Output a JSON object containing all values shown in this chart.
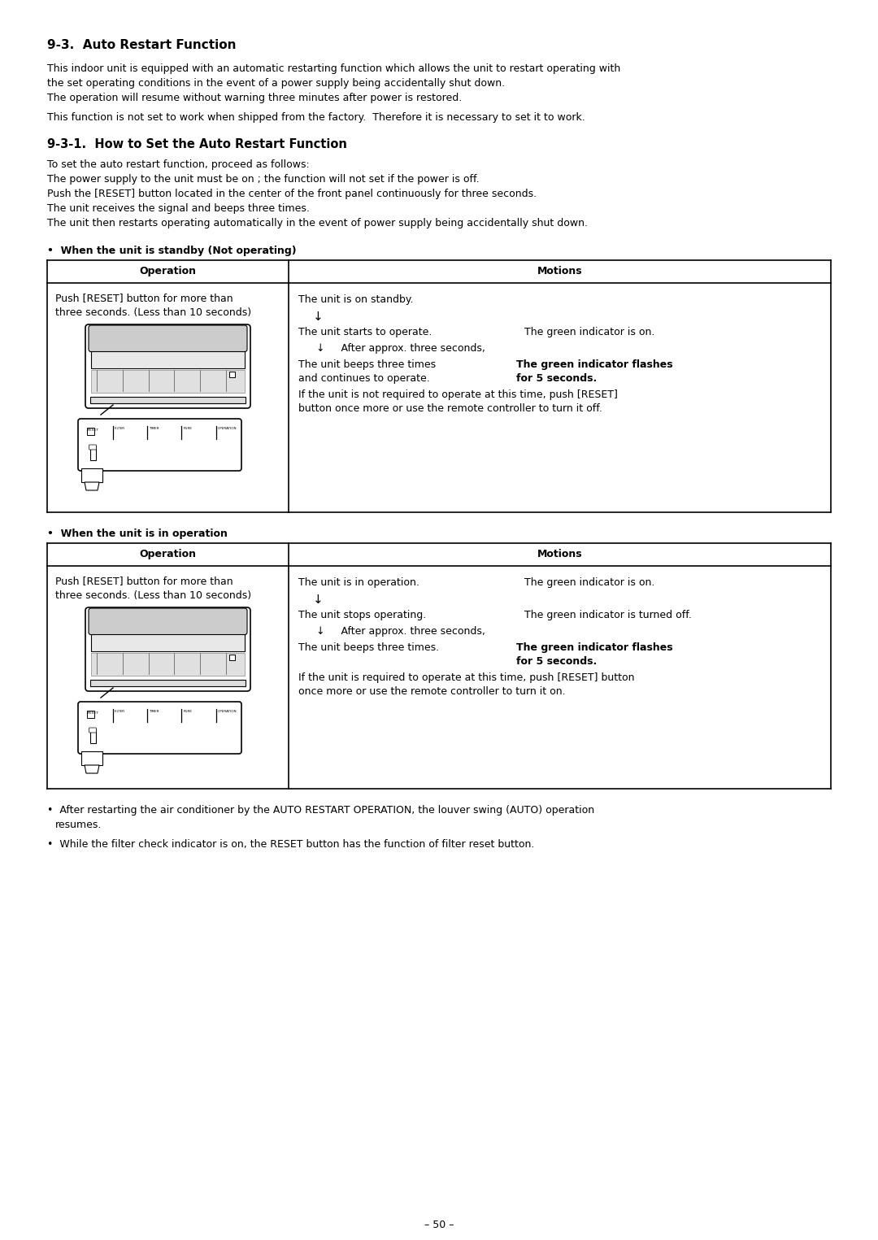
{
  "page_background": "#ffffff",
  "title1": "9-3.  Auto Restart Function",
  "para1_lines": [
    "This indoor unit is equipped with an automatic restarting function which allows the unit to restart operating with",
    "the set operating conditions in the event of a power supply being accidentally shut down.",
    "The operation will resume without warning three minutes after power is restored.",
    "This function is not set to work when shipped from the factory.  Therefore it is necessary to set it to work."
  ],
  "title2": "9-3-1.  How to Set the Auto Restart Function",
  "para2_lines": [
    "To set the auto restart function, proceed as follows:",
    "The power supply to the unit must be on ; the function will not set if the power is off.",
    "Push the [RESET] button located in the center of the front panel continuously for three seconds.",
    "The unit receives the signal and beeps three times.",
    "The unit then restarts operating automatically in the event of power supply being accidentally shut down."
  ],
  "bullet1_header": "•  When the unit is standby (Not operating)",
  "table1_op_header": "Operation",
  "table1_mot_header": "Motions",
  "bullet2_header": "•  When the unit is in operation",
  "table2_op_header": "Operation",
  "table2_mot_header": "Motions",
  "footer_bullet1": "•  After restarting the air conditioner by the AUTO RESTART OPERATION, the louver swing (AUTO) operation",
  "footer_bullet1b": "   resumes.",
  "footer_bullet2": "•  While the filter check indicator is on, the RESET button has the function of filter reset button.",
  "page_number": "– 50 –",
  "base_font_size": 9.0,
  "title_font_size": 11.0,
  "subtitle_font_size": 10.5
}
